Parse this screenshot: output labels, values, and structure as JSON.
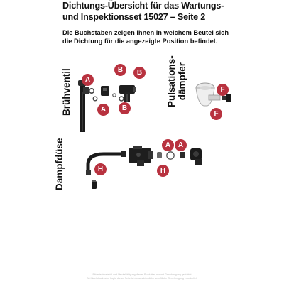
{
  "header": {
    "title_line1": "Dichtungs-Übersicht für das Wartungs-",
    "title_line2": "und Inspektionsset 15027 – Seite 2",
    "intro_line1": "Die Buchstaben zeigen Ihnen in welchem Beutel sich",
    "intro_line2": "die Dichtung für die angezeigte Position befindet."
  },
  "sections": {
    "bruehventil": {
      "label": "Brühventil"
    },
    "pulsationsdaempfer": {
      "label_line1": "Pulsations-",
      "label_line2": "dämpfer"
    },
    "dampfduese": {
      "label": "Dampfdüse"
    }
  },
  "badges": {
    "a1": "A",
    "a2": "A",
    "b1": "B",
    "b2": "B",
    "b3": "B",
    "f1": "F",
    "f2": "F",
    "a3": "A",
    "a4": "A",
    "h1": "H",
    "h2": "H"
  },
  "colors": {
    "badge": "#b8323f",
    "part": "#1a1a1a",
    "seal": "#444444"
  },
  "footer": {
    "line1": "Bildertextmaterial und Vervielfältigung dieses Produktes nur mit Genehmigung gestattet",
    "line2": "Bei Nachdruck oder Kopie dieser Seite ist die ausdrückliche schriftliche Genehmigung erforderlich"
  }
}
